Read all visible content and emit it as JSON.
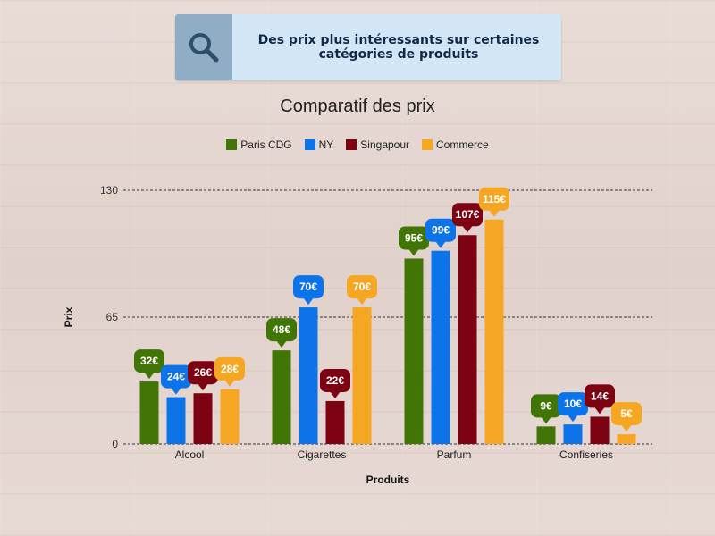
{
  "banner": {
    "icon": "search-icon",
    "text": "Des prix plus intéressants sur certaines catégories de produits"
  },
  "chart_data": {
    "type": "bar",
    "title": "Comparatif des prix",
    "xlabel": "Produits",
    "ylabel": "Prix",
    "ylim": [
      0,
      130
    ],
    "yticks": [
      0,
      65,
      130
    ],
    "grid": true,
    "legend_position": "top",
    "categories": [
      "Alcool",
      "Cigarettes",
      "Parfum",
      "Confiseries"
    ],
    "series": [
      {
        "name": "Paris CDG",
        "color": "#417505",
        "values": [
          32,
          48,
          95,
          9
        ]
      },
      {
        "name": "NY",
        "color": "#0c74e8",
        "values": [
          24,
          70,
          99,
          10
        ]
      },
      {
        "name": "Singapour",
        "color": "#7d0212",
        "values": [
          26,
          22,
          107,
          14
        ]
      },
      {
        "name": "Commerce",
        "color": "#f5a623",
        "values": [
          28,
          70,
          115,
          5
        ]
      }
    ],
    "value_suffix": "€"
  }
}
